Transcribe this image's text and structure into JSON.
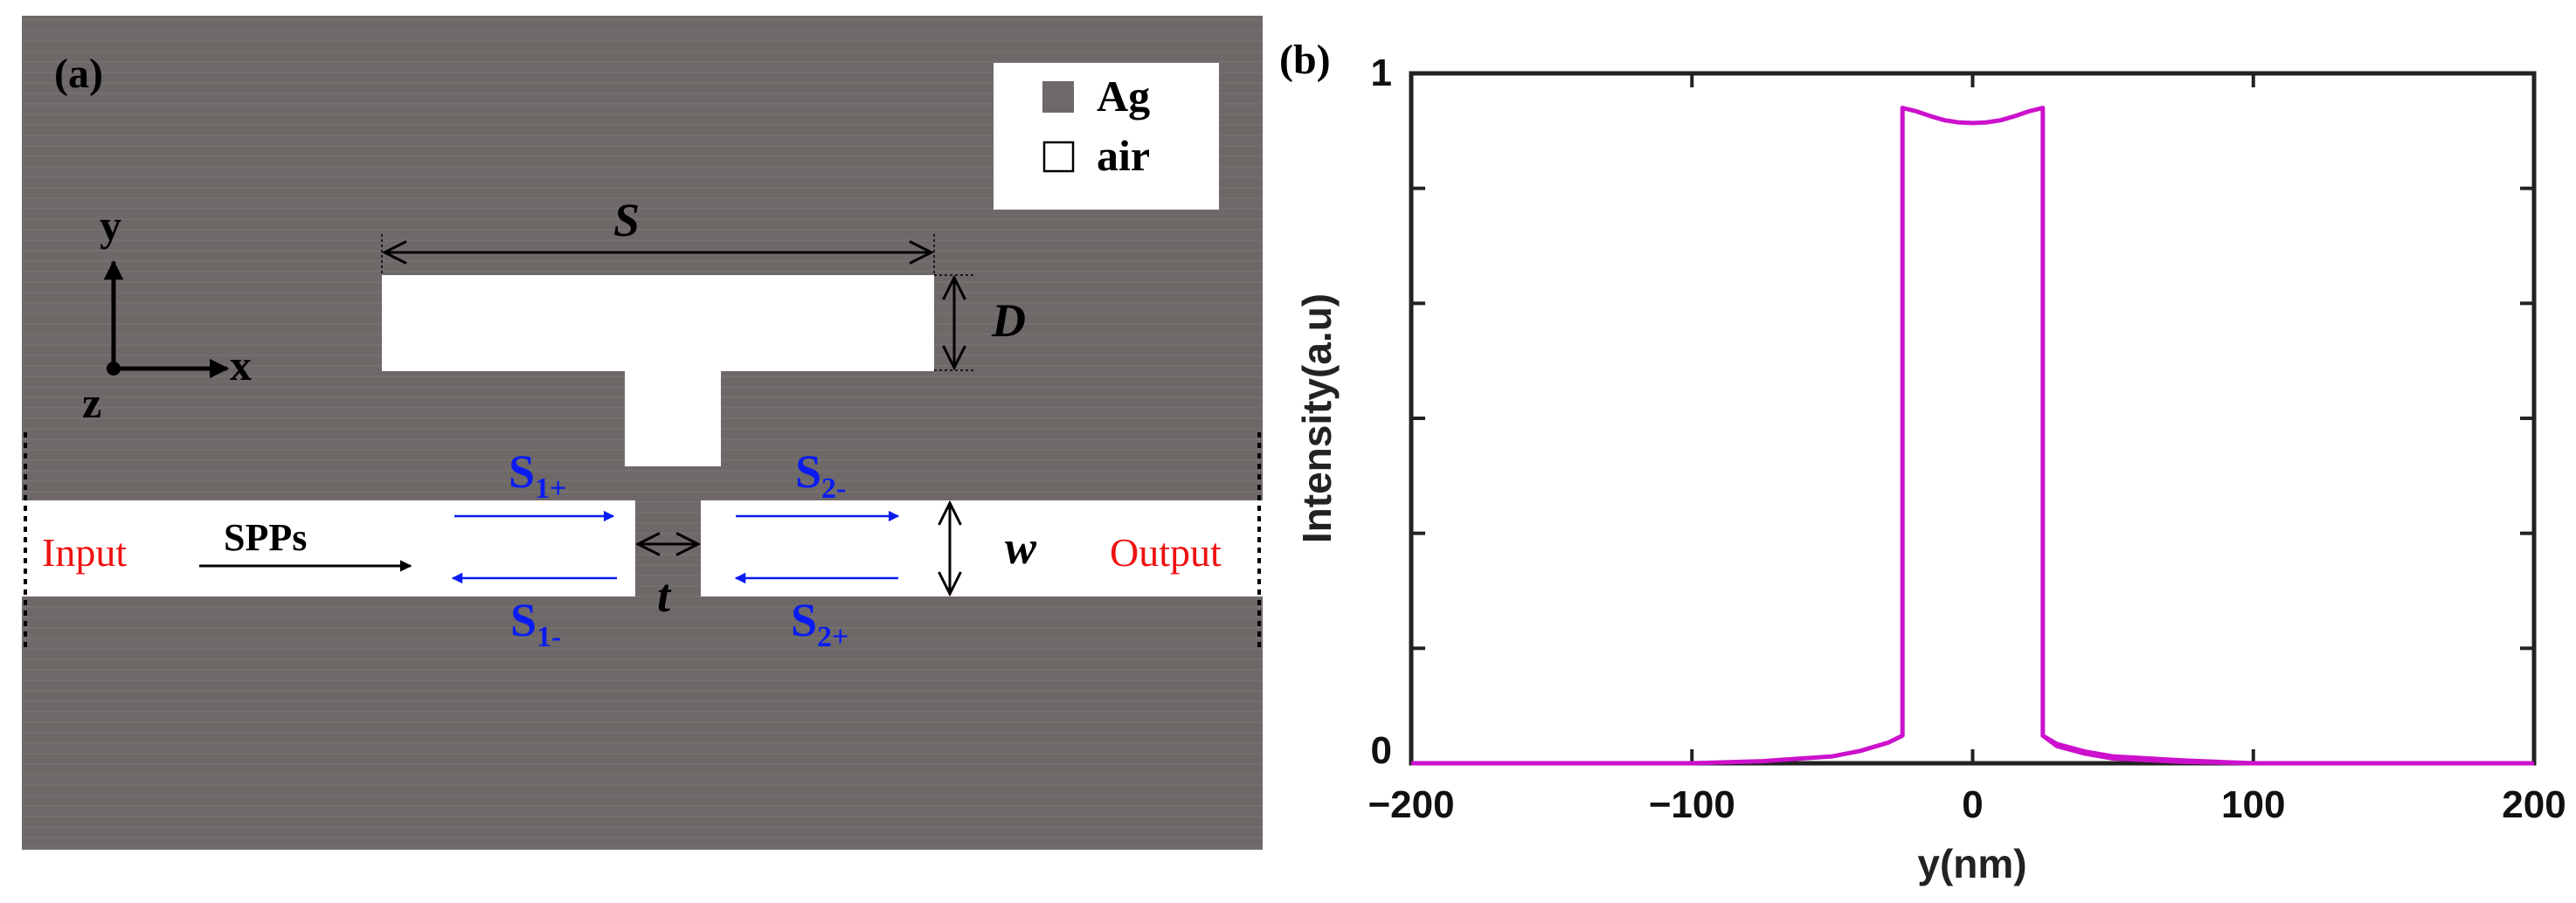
{
  "panel_a": {
    "label": "(a)",
    "colors": {
      "metal": "#6e6968",
      "air": "#ffffff",
      "blue": "#0b1cf2",
      "red": "#ee1111",
      "black": "#000000"
    },
    "legend": {
      "metal": "Ag",
      "air": "air"
    },
    "axes": {
      "y": "y",
      "x": "x",
      "z": "z"
    },
    "dims": {
      "S": "S",
      "D": "D",
      "w": "w",
      "t": "t"
    },
    "labels": {
      "input": "Input",
      "output": "Output",
      "spps": "SPPs"
    },
    "waves": {
      "s1p": {
        "main": "S",
        "sub": "1+"
      },
      "s1m": {
        "main": "S",
        "sub": "1-"
      },
      "s2m": {
        "main": "S",
        "sub": "2-"
      },
      "s2p": {
        "main": "S",
        "sub": "2+"
      }
    }
  },
  "panel_b": {
    "label": "(b)",
    "line_color": "#cc11cc"
  },
  "chart_data": {
    "type": "line",
    "title": "",
    "xlabel": "y(nm)",
    "ylabel": "Intensity(a.u)",
    "xlim": [
      -200,
      200
    ],
    "ylim": [
      0,
      1
    ],
    "xticks": [
      -200,
      -100,
      0,
      100,
      200
    ],
    "xtick_labels": [
      "−200",
      "−100",
      "0",
      "100",
      "200"
    ],
    "yticks": [
      0,
      1
    ],
    "ytick_labels": [
      "0",
      "1"
    ],
    "grid": false,
    "series": [
      {
        "name": "",
        "x": [
          -200,
          -100,
          -75,
          -50,
          -40,
          -30,
          -25,
          -25,
          -20,
          -15,
          -10,
          -5,
          0,
          5,
          10,
          15,
          20,
          25,
          25,
          30,
          40,
          50,
          75,
          100,
          200
        ],
        "y": [
          0,
          0,
          0.003,
          0.01,
          0.018,
          0.03,
          0.04,
          0.95,
          0.945,
          0.938,
          0.932,
          0.929,
          0.928,
          0.929,
          0.932,
          0.938,
          0.945,
          0.95,
          0.04,
          0.028,
          0.017,
          0.01,
          0.004,
          0,
          0
        ]
      },
      {
        "name": "",
        "x": [
          25,
          30,
          40,
          50,
          75,
          100
        ],
        "y": [
          0.04,
          0.025,
          0.014,
          0.007,
          0.002,
          0
        ]
      }
    ]
  }
}
